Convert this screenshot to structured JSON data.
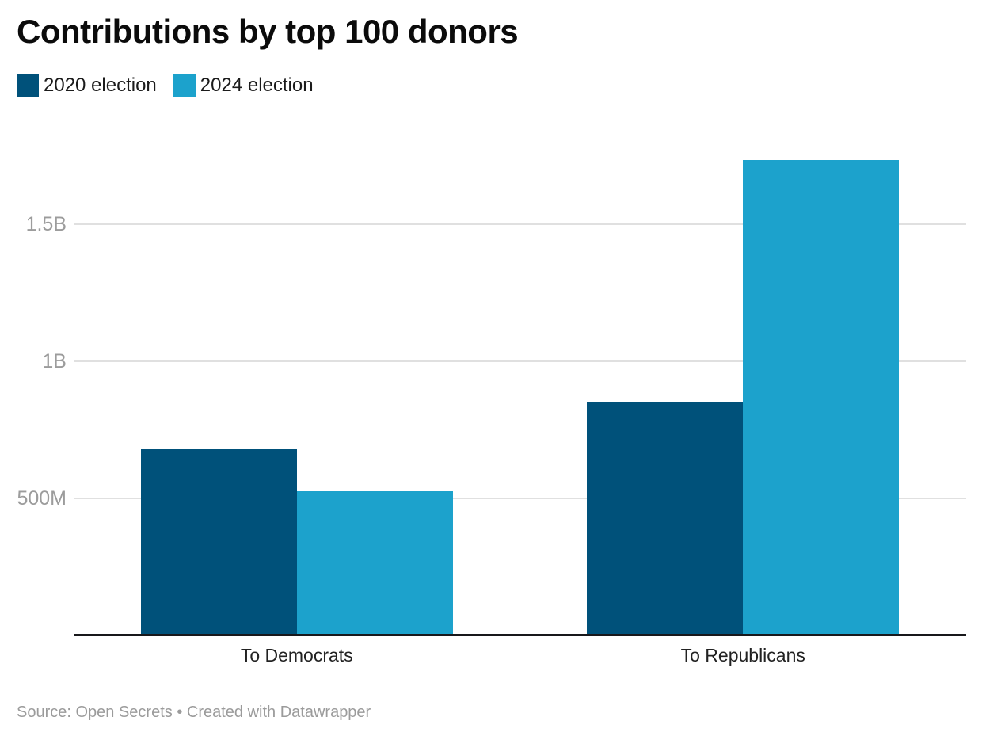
{
  "header": {
    "title": "Contributions by top 100 donors"
  },
  "legend": {
    "items": [
      {
        "label": "2020 election",
        "color": "#00517a"
      },
      {
        "label": "2024 election",
        "color": "#1ca2cc"
      }
    ]
  },
  "footer": {
    "source_line": "Source: Open Secrets • Created with Datawrapper"
  },
  "chart_data": {
    "type": "bar",
    "title": "Contributions by top 100 donors",
    "categories": [
      "To Democrats",
      "To Republicans"
    ],
    "series": [
      {
        "name": "2020 election",
        "color": "#00517a",
        "values_millions": [
          680,
          850
        ]
      },
      {
        "name": "2024 election",
        "color": "#1ca2cc",
        "values_millions": [
          525,
          1735
        ]
      }
    ],
    "y_axis": {
      "ticks": [
        {
          "label": "500M",
          "value_millions": 500
        },
        {
          "label": "1B",
          "value_millions": 1000
        },
        {
          "label": "1.5B",
          "value_millions": 1500
        }
      ],
      "range_millions": [
        0,
        1885
      ]
    },
    "grid": "horizontal",
    "legend_position": "top-left",
    "styles": {
      "grid_color": "#e0e0e0",
      "axis_color": "#18181b",
      "tick_label_color": "#9c9c9c",
      "category_label_color": "#222222",
      "source_color": "#9b9b9b"
    }
  }
}
